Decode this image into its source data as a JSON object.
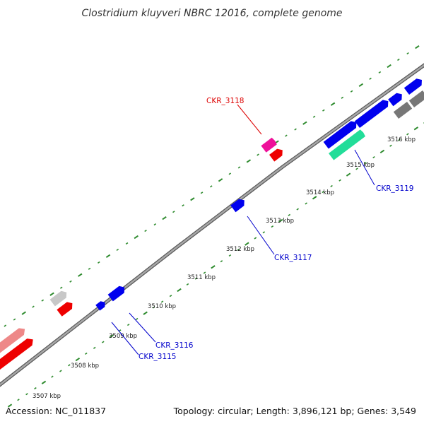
{
  "title": "Clostridium kluyveri NBRC 12016, complete genome",
  "footer": {
    "accession": "Accession: NC_011837",
    "summary": "Topology: circular; Length: 3,896,121 bp; Genes: 3,549"
  },
  "colors": {
    "backbone": "#888888",
    "tick": "#2e8b2e",
    "gene_blue": "#0000ee",
    "gene_red": "#ee0000",
    "gene_pink": "#ee1199",
    "gene_teal": "#22dd99",
    "gene_light_red": "#ee8888",
    "gene_gray": "#777777",
    "gene_light_gray": "#c8c8c8",
    "label_red": "#dd0000",
    "label_blue": "#0000cc"
  },
  "scale_labels": [
    "3507 kbp",
    "3508 kbp",
    "3509 kbp",
    "3510 kbp",
    "3511 kbp",
    "3512 kbp",
    "3513 kbp",
    "3514 kbp",
    "3515 kbp",
    "3516 kbp"
  ],
  "gene_labels": [
    "CKR_3118",
    "CKR_3119",
    "CKR_3117",
    "CKR_3116",
    "CKR_3115"
  ]
}
